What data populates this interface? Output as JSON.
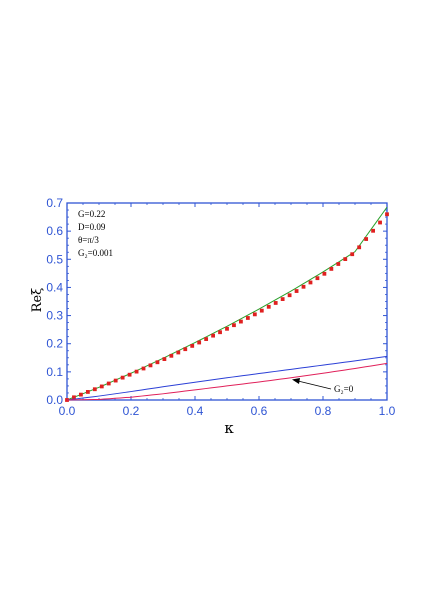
{
  "chart_data": {
    "type": "line",
    "title": "",
    "xlabel": "κ",
    "ylabel": "Reξ",
    "xlim": [
      0.0,
      1.0
    ],
    "ylim": [
      0.0,
      0.7
    ],
    "x_ticks": [
      "0.0",
      "0.2",
      "0.4",
      "0.6",
      "0.8",
      "1.0"
    ],
    "y_ticks": [
      "0.0",
      "0.1",
      "0.2",
      "0.3",
      "0.4",
      "0.5",
      "0.6",
      "0.7"
    ],
    "parameters": [
      "G=0.22",
      "D=0.09",
      "θ=π/3",
      "G₂=0.001"
    ],
    "arrow_label": "G₂=0",
    "grid": false,
    "series": [
      {
        "style": "solid",
        "color": "#2aa02a",
        "x": [
          0.0,
          0.1,
          0.2,
          0.3,
          0.4,
          0.5,
          0.6,
          0.7,
          0.8,
          0.9,
          1.0
        ],
        "y": [
          0.0,
          0.045,
          0.095,
          0.148,
          0.204,
          0.262,
          0.323,
          0.387,
          0.455,
          0.527,
          0.685
        ]
      },
      {
        "style": "dotted",
        "color": "#e02020",
        "x": [
          0.0,
          0.1,
          0.2,
          0.3,
          0.4,
          0.5,
          0.6,
          0.7,
          0.8,
          0.9,
          1.0
        ],
        "y": [
          0.0,
          0.044,
          0.092,
          0.143,
          0.197,
          0.253,
          0.312,
          0.375,
          0.445,
          0.525,
          0.66
        ]
      },
      {
        "style": "solid",
        "color": "#2b3fd6",
        "x": [
          0.0,
          0.1,
          0.2,
          0.3,
          0.4,
          0.5,
          0.6,
          0.7,
          0.8,
          0.9,
          1.0
        ],
        "y": [
          0.0,
          0.014,
          0.03,
          0.047,
          0.063,
          0.079,
          0.094,
          0.109,
          0.124,
          0.139,
          0.155
        ]
      },
      {
        "style": "solid",
        "color": "#e0205a",
        "x": [
          0.0,
          0.1,
          0.2,
          0.3,
          0.4,
          0.5,
          0.6,
          0.7,
          0.8,
          0.9,
          1.0
        ],
        "y": [
          0.0,
          0.002,
          0.01,
          0.022,
          0.036,
          0.05,
          0.064,
          0.079,
          0.095,
          0.112,
          0.13
        ]
      }
    ],
    "colors": {
      "axis": "#2f55d4",
      "text": "#000000"
    }
  }
}
